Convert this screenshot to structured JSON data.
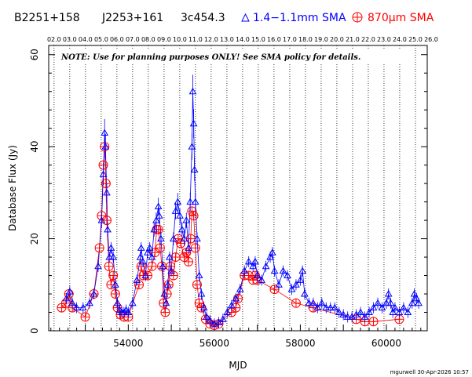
{
  "header": {
    "source_name": "B2251+158",
    "j2000_name": "J2253+161",
    "common_name": "3c454.3",
    "series_1mm_label": "1.4−1.1mm SMA",
    "series_870_label_prefix": "870",
    "series_870_label_mu": "μ",
    "series_870_label_suffix": "m SMA"
  },
  "note": "NOTE: Use for planning purposes ONLY!  See SMA policy for details.",
  "credit": "mgurwell 30-Apr-2026 10:57",
  "colors": {
    "series_1mm": "#0000ff",
    "series_870": "#ff0000",
    "axis": "#000000"
  },
  "chart_data": {
    "type": "scatter",
    "xlabel": "MJD",
    "ylabel": "Database Flux (Jy)",
    "xlim": [
      52150,
      60950
    ],
    "ylim": [
      0,
      62
    ],
    "x_ticks": [
      54000,
      56000,
      58000,
      60000
    ],
    "x_tick_labels": [
      "54000",
      "56000",
      "58000",
      "60000"
    ],
    "y_ticks": [
      0,
      20,
      40,
      60
    ],
    "y_tick_labels": [
      "0",
      "20",
      "40",
      "60"
    ],
    "top_axis_labels": [
      "02.0",
      "03.0",
      "04.0",
      "05.0",
      "06.0",
      "07.0",
      "08.0",
      "09.0",
      "10.0",
      "11.0",
      "12.0",
      "13.0",
      "14.0",
      "15.0",
      "16.0",
      "17.0",
      "18.0",
      "19.0",
      "20.0",
      "21.0",
      "22.0",
      "23.0",
      "24.0",
      "25.0",
      "26.0"
    ],
    "top_axis_mjd": [
      52275,
      52640,
      53005,
      53371,
      53736,
      54101,
      54466,
      54832,
      55197,
      55562,
      55927,
      56293,
      56658,
      57023,
      57388,
      57754,
      58119,
      58484,
      58849,
      59215,
      59580,
      59945,
      60310,
      60676,
      61041
    ],
    "grid": "vertical dotted at year boundaries",
    "series": [
      {
        "name": "1.4−1.1mm SMA",
        "marker": "triangle",
        "points": [
          [
            52560,
            7
          ],
          [
            52640,
            8.5
          ],
          [
            52700,
            6
          ],
          [
            52800,
            5
          ],
          [
            52950,
            5
          ],
          [
            53100,
            6
          ],
          [
            53200,
            8
          ],
          [
            53300,
            14
          ],
          [
            53380,
            24
          ],
          [
            53420,
            34
          ],
          [
            53450,
            43
          ],
          [
            53470,
            40
          ],
          [
            53500,
            30
          ],
          [
            53520,
            22
          ],
          [
            53560,
            16
          ],
          [
            53600,
            18
          ],
          [
            53650,
            16
          ],
          [
            53700,
            10
          ],
          [
            53750,
            6
          ],
          [
            53800,
            4.5
          ],
          [
            53850,
            4
          ],
          [
            53900,
            4
          ],
          [
            53950,
            4.5
          ],
          [
            54000,
            4
          ],
          [
            54100,
            6
          ],
          [
            54200,
            11
          ],
          [
            54280,
            16
          ],
          [
            54300,
            18
          ],
          [
            54340,
            15
          ],
          [
            54400,
            12
          ],
          [
            54450,
            17
          ],
          [
            54500,
            18
          ],
          [
            54550,
            16
          ],
          [
            54600,
            22
          ],
          [
            54650,
            24
          ],
          [
            54700,
            27
          ],
          [
            54720,
            25
          ],
          [
            54760,
            20
          ],
          [
            54800,
            14
          ],
          [
            54840,
            8
          ],
          [
            54880,
            6
          ],
          [
            54920,
            10
          ],
          [
            54960,
            16
          ],
          [
            55000,
            13
          ],
          [
            55050,
            20
          ],
          [
            55100,
            26
          ],
          [
            55150,
            28
          ],
          [
            55200,
            25
          ],
          [
            55250,
            22
          ],
          [
            55300,
            20
          ],
          [
            55350,
            24
          ],
          [
            55400,
            18
          ],
          [
            55440,
            28
          ],
          [
            55480,
            40
          ],
          [
            55500,
            52
          ],
          [
            55520,
            45
          ],
          [
            55540,
            35
          ],
          [
            55560,
            28
          ],
          [
            55600,
            20
          ],
          [
            55650,
            12
          ],
          [
            55700,
            8
          ],
          [
            55760,
            5
          ],
          [
            55820,
            3
          ],
          [
            55900,
            2.2
          ],
          [
            56000,
            1.5
          ],
          [
            56100,
            1.8
          ],
          [
            56200,
            2.5
          ],
          [
            56300,
            4
          ],
          [
            56400,
            5.5
          ],
          [
            56500,
            7
          ],
          [
            56600,
            9
          ],
          [
            56700,
            13
          ],
          [
            56800,
            15
          ],
          [
            56900,
            14
          ],
          [
            56950,
            15
          ],
          [
            57000,
            12
          ],
          [
            57100,
            11
          ],
          [
            57200,
            14
          ],
          [
            57300,
            16
          ],
          [
            57350,
            17
          ],
          [
            57400,
            13
          ],
          [
            57500,
            10
          ],
          [
            57600,
            13
          ],
          [
            57700,
            12
          ],
          [
            57800,
            9
          ],
          [
            57900,
            10
          ],
          [
            58000,
            11
          ],
          [
            58050,
            13
          ],
          [
            58100,
            8
          ],
          [
            58200,
            6
          ],
          [
            58300,
            6
          ],
          [
            58400,
            5
          ],
          [
            58500,
            6
          ],
          [
            58600,
            5
          ],
          [
            58700,
            5
          ],
          [
            58800,
            5
          ],
          [
            58900,
            4
          ],
          [
            59000,
            3.5
          ],
          [
            59100,
            3
          ],
          [
            59200,
            3
          ],
          [
            59300,
            3.5
          ],
          [
            59400,
            4
          ],
          [
            59500,
            3
          ],
          [
            59600,
            4
          ],
          [
            59700,
            5
          ],
          [
            59800,
            6
          ],
          [
            59900,
            5
          ],
          [
            60000,
            6
          ],
          [
            60050,
            8
          ],
          [
            60100,
            6
          ],
          [
            60150,
            4
          ],
          [
            60200,
            5
          ],
          [
            60300,
            4
          ],
          [
            60400,
            5
          ],
          [
            60500,
            4
          ],
          [
            60600,
            6
          ],
          [
            60650,
            8
          ],
          [
            60700,
            7
          ],
          [
            60750,
            6
          ]
        ]
      },
      {
        "name": "870μm SMA",
        "marker": "circled-plus",
        "points": [
          [
            52450,
            5
          ],
          [
            52550,
            6
          ],
          [
            52620,
            8
          ],
          [
            52700,
            5
          ],
          [
            53000,
            3
          ],
          [
            53200,
            8
          ],
          [
            53330,
            18
          ],
          [
            53380,
            25
          ],
          [
            53420,
            36
          ],
          [
            53450,
            40
          ],
          [
            53480,
            32
          ],
          [
            53500,
            24
          ],
          [
            53550,
            14
          ],
          [
            53600,
            10
          ],
          [
            53650,
            12
          ],
          [
            53700,
            8
          ],
          [
            53750,
            5
          ],
          [
            53820,
            3.5
          ],
          [
            53900,
            3
          ],
          [
            54000,
            3
          ],
          [
            54250,
            10
          ],
          [
            54300,
            14
          ],
          [
            54350,
            12
          ],
          [
            54450,
            12
          ],
          [
            54550,
            14
          ],
          [
            54620,
            17
          ],
          [
            54660,
            22
          ],
          [
            54700,
            22
          ],
          [
            54740,
            18
          ],
          [
            54780,
            14
          ],
          [
            54820,
            6
          ],
          [
            54860,
            4
          ],
          [
            54900,
            8
          ],
          [
            54940,
            10
          ],
          [
            54980,
            14
          ],
          [
            55050,
            12
          ],
          [
            55100,
            16
          ],
          [
            55160,
            20
          ],
          [
            55220,
            19
          ],
          [
            55300,
            16
          ],
          [
            55350,
            17
          ],
          [
            55400,
            15
          ],
          [
            55450,
            20
          ],
          [
            55480,
            26
          ],
          [
            55520,
            25
          ],
          [
            55560,
            18
          ],
          [
            55600,
            10
          ],
          [
            55650,
            6
          ],
          [
            55700,
            5
          ],
          [
            55800,
            2.5
          ],
          [
            55900,
            1.5
          ],
          [
            56000,
            1.2
          ],
          [
            56100,
            1.5
          ],
          [
            56400,
            4
          ],
          [
            56500,
            5
          ],
          [
            56550,
            7
          ],
          [
            56700,
            12
          ],
          [
            56800,
            12
          ],
          [
            56900,
            11
          ],
          [
            56950,
            12
          ],
          [
            57000,
            11
          ],
          [
            57400,
            9
          ],
          [
            57900,
            6
          ],
          [
            58300,
            5
          ],
          [
            59300,
            2.5
          ],
          [
            59500,
            2
          ],
          [
            59700,
            2
          ],
          [
            60300,
            2.5
          ]
        ]
      }
    ]
  }
}
